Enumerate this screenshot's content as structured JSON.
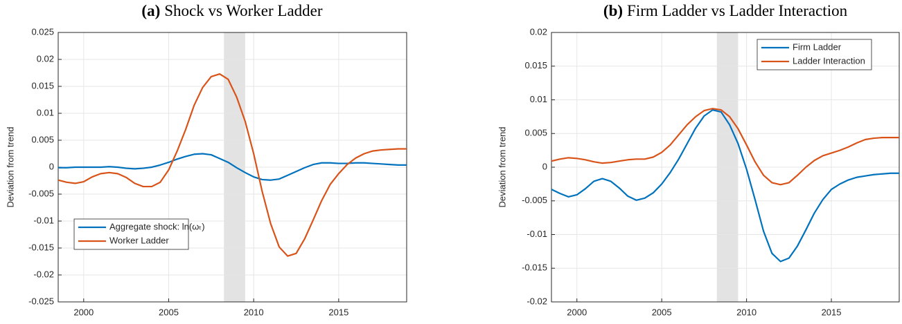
{
  "chart_data": [
    {
      "type": "line",
      "panel_label": "(a)",
      "title": "Shock vs Worker Ladder",
      "ylabel": "Deviation from trend",
      "x": [
        1998.5,
        1999,
        1999.5,
        2000,
        2000.5,
        2001,
        2001.5,
        2002,
        2002.5,
        2003,
        2003.5,
        2004,
        2004.5,
        2005,
        2005.5,
        2006,
        2006.5,
        2007,
        2007.5,
        2008,
        2008.5,
        2009,
        2009.5,
        2010,
        2010.5,
        2011,
        2011.5,
        2012,
        2012.5,
        2013,
        2013.5,
        2014,
        2014.5,
        2015,
        2015.5,
        2016,
        2016.5,
        2017,
        2017.5,
        2018,
        2018.5,
        2019
      ],
      "series": [
        {
          "name": "Aggregate shock: ln(ωₜ)",
          "color": "#0072bd",
          "values": [
            -0.0001,
            -0.0001,
            0,
            0,
            0,
            0,
            0.0001,
            0,
            -0.0002,
            -0.0003,
            -0.0002,
            0,
            0.0004,
            0.0009,
            0.0015,
            0.002,
            0.0024,
            0.0025,
            0.0023,
            0.0016,
            0.0009,
            -0.0001,
            -0.001,
            -0.0018,
            -0.0023,
            -0.0024,
            -0.0022,
            -0.0015,
            -0.0008,
            -0.0001,
            0.0005,
            0.0008,
            0.0008,
            0.0007,
            0.0007,
            0.0008,
            0.0008,
            0.0007,
            0.0006,
            0.0005,
            0.0004,
            0.0004
          ]
        },
        {
          "name": "Worker Ladder",
          "color": "#d95319",
          "values": [
            -0.0024,
            -0.0028,
            -0.003,
            -0.0027,
            -0.0018,
            -0.0012,
            -0.001,
            -0.0012,
            -0.0019,
            -0.003,
            -0.0036,
            -0.0036,
            -0.0028,
            -0.0005,
            0.003,
            0.007,
            0.0115,
            0.0148,
            0.0168,
            0.0173,
            0.0163,
            0.013,
            0.0085,
            0.0025,
            -0.0045,
            -0.0105,
            -0.0148,
            -0.0165,
            -0.016,
            -0.0133,
            -0.0098,
            -0.0062,
            -0.0032,
            -0.0012,
            0.0005,
            0.0017,
            0.0025,
            0.003,
            0.0032,
            0.0033,
            0.0034,
            0.0034
          ]
        }
      ],
      "shade": [
        2008.25,
        2009.5
      ],
      "xlim": [
        1998.5,
        2019
      ],
      "xticks": [
        2000,
        2005,
        2010,
        2015
      ],
      "ylim": [
        -0.025,
        0.025
      ],
      "yticks": [
        -0.025,
        -0.02,
        -0.015,
        -0.01,
        -0.005,
        0,
        0.005,
        0.01,
        0.015,
        0.02,
        0.025
      ],
      "grid": true,
      "legend": "lower left"
    },
    {
      "type": "line",
      "panel_label": "(b)",
      "title": "Firm Ladder vs Ladder Interaction",
      "ylabel": "Deviation from trend",
      "x": [
        1998.5,
        1999,
        1999.5,
        2000,
        2000.5,
        2001,
        2001.5,
        2002,
        2002.5,
        2003,
        2003.5,
        2004,
        2004.5,
        2005,
        2005.5,
        2006,
        2006.5,
        2007,
        2007.5,
        2008,
        2008.5,
        2009,
        2009.5,
        2010,
        2010.5,
        2011,
        2011.5,
        2012,
        2012.5,
        2013,
        2013.5,
        2014,
        2014.5,
        2015,
        2015.5,
        2016,
        2016.5,
        2017,
        2017.5,
        2018,
        2018.5,
        2019
      ],
      "series": [
        {
          "name": "Firm Ladder",
          "color": "#0072bd",
          "values": [
            -0.0033,
            -0.0039,
            -0.0044,
            -0.0041,
            -0.0032,
            -0.0021,
            -0.0017,
            -0.0021,
            -0.0031,
            -0.0043,
            -0.0049,
            -0.0046,
            -0.0038,
            -0.0025,
            -0.0008,
            0.0012,
            0.0035,
            0.0058,
            0.0076,
            0.0085,
            0.0082,
            0.0063,
            0.0035,
            -0.0003,
            -0.0048,
            -0.0095,
            -0.0128,
            -0.014,
            -0.0135,
            -0.0117,
            -0.0093,
            -0.0068,
            -0.0048,
            -0.0033,
            -0.0025,
            -0.0019,
            -0.0015,
            -0.0013,
            -0.0011,
            -0.001,
            -0.0009,
            -0.0009
          ]
        },
        {
          "name": "Ladder Interaction",
          "color": "#d95319",
          "values": [
            0.0009,
            0.0012,
            0.0014,
            0.0013,
            0.0011,
            0.0008,
            0.0006,
            0.0007,
            0.0009,
            0.0011,
            0.0012,
            0.0012,
            0.0015,
            0.0022,
            0.0033,
            0.0048,
            0.0063,
            0.0075,
            0.0084,
            0.0087,
            0.0085,
            0.0075,
            0.0057,
            0.0033,
            0.0008,
            -0.0012,
            -0.0023,
            -0.0026,
            -0.0023,
            -0.0012,
            0,
            0.001,
            0.0017,
            0.0021,
            0.0025,
            0.003,
            0.0036,
            0.0041,
            0.0043,
            0.0044,
            0.0044,
            0.0044
          ]
        }
      ],
      "shade": [
        2008.25,
        2009.5
      ],
      "xlim": [
        1998.5,
        2019
      ],
      "xticks": [
        2000,
        2005,
        2010,
        2015
      ],
      "ylim": [
        -0.02,
        0.02
      ],
      "yticks": [
        -0.02,
        -0.015,
        -0.01,
        -0.005,
        0,
        0.005,
        0.01,
        0.015,
        0.02
      ],
      "grid": true,
      "legend": "upper right"
    }
  ]
}
